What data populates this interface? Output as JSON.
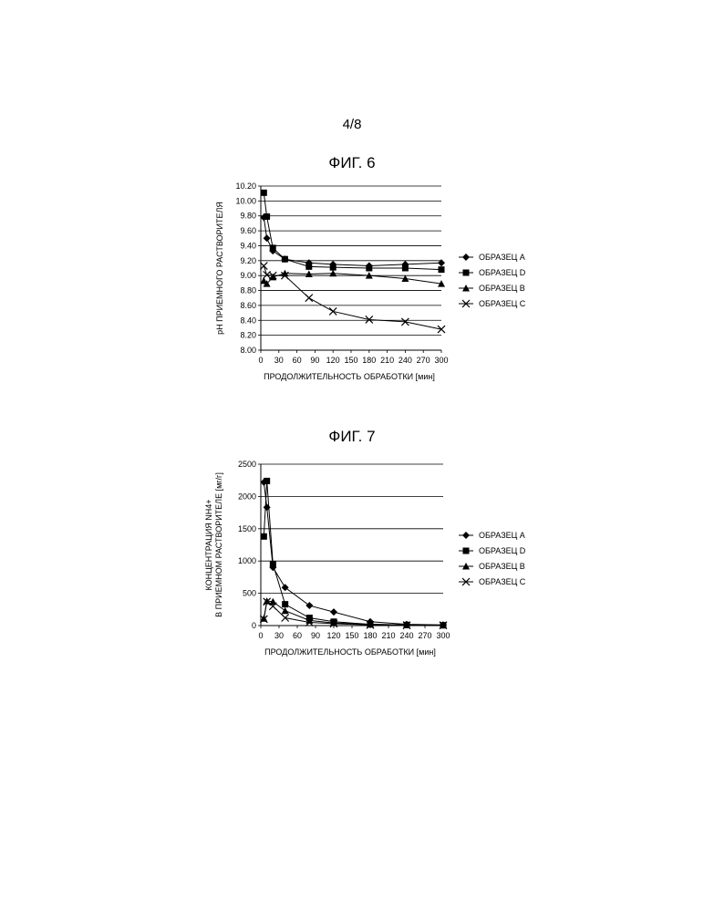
{
  "page_number": "4/8",
  "chart_data": [
    {
      "type": "line",
      "title": "ФИГ. 6",
      "xlabel": "ПРОДОЛЖИТЕЛЬНОСТЬ ОБРАБОТКИ [мин]",
      "ylabel": "pH ПРИЕМНОГО РАСТВОРИТЕЛЯ",
      "ylabel_lines": [
        "pH ПРИЕМНОГО РАСТВОРИТЕЛЯ"
      ],
      "xlim": [
        0,
        300
      ],
      "ylim": [
        8.0,
        10.2
      ],
      "x_ticks": [
        0,
        30,
        60,
        90,
        120,
        150,
        180,
        210,
        240,
        270,
        300
      ],
      "y_ticks": [
        8.0,
        8.2,
        8.4,
        8.6,
        8.8,
        9.0,
        9.2,
        9.4,
        9.6,
        9.8,
        10.0,
        10.2
      ],
      "y_tick_labels": [
        "8.00",
        "8.20",
        "8.40",
        "8.60",
        "8.80",
        "9.00",
        "9.20",
        "9.40",
        "9.60",
        "9.80",
        "10.00",
        "10.20"
      ],
      "grid": "horizontal",
      "legend_position": "right",
      "series": [
        {
          "name": "ОБРАЗЕЦ A",
          "marker": "diamond",
          "x": [
            5,
            10,
            20,
            40,
            80,
            120,
            180,
            240,
            300
          ],
          "y": [
            9.78,
            9.5,
            9.33,
            9.22,
            9.17,
            9.15,
            9.13,
            9.15,
            9.17
          ]
        },
        {
          "name": "ОБРАЗЕЦ D",
          "marker": "square",
          "x": [
            5,
            10,
            20,
            40,
            80,
            120,
            180,
            240,
            300
          ],
          "y": [
            10.11,
            9.79,
            9.37,
            9.22,
            9.12,
            9.11,
            9.1,
            9.1,
            9.08
          ]
        },
        {
          "name": "ОБРАЗЕЦ B",
          "marker": "triangle",
          "x": [
            5,
            10,
            20,
            40,
            80,
            120,
            180,
            240,
            300
          ],
          "y": [
            8.93,
            8.89,
            8.98,
            9.03,
            9.02,
            9.03,
            9.0,
            8.96,
            8.89
          ]
        },
        {
          "name": "ОБРАЗЕЦ C",
          "marker": "x",
          "x": [
            5,
            10,
            20,
            40,
            80,
            120,
            180,
            240,
            300
          ],
          "y": [
            9.13,
            9.01,
            9.0,
            9.0,
            8.7,
            8.52,
            8.41,
            8.38,
            8.28
          ]
        }
      ]
    },
    {
      "type": "line",
      "title": "ФИГ. 7",
      "xlabel": "ПРОДОЛЖИТЕЛЬНОСТЬ ОБРАБОТКИ [мин]",
      "ylabel": "КОНЦЕНТРАЦИЯ NH4+ В ПРИЕМНОМ РАСТВОРИТЕЛЕ [мг/г]",
      "ylabel_lines": [
        "КОНЦЕНТРАЦИЯ NH4+",
        "В ПРИЕМНОМ РАСТВОРИТЕЛЕ [мг/г]"
      ],
      "xlim": [
        0,
        300
      ],
      "ylim": [
        0,
        2500
      ],
      "x_ticks": [
        0,
        30,
        60,
        90,
        120,
        150,
        180,
        210,
        240,
        270,
        300
      ],
      "y_ticks": [
        0,
        500,
        1000,
        1500,
        2000,
        2500
      ],
      "y_tick_labels": [
        "0",
        "500",
        "1000",
        "1500",
        "2000",
        "2500"
      ],
      "grid": "horizontal",
      "legend_position": "right",
      "series": [
        {
          "name": "ОБРАЗЕЦ A",
          "marker": "diamond",
          "x": [
            5,
            10,
            20,
            40,
            80,
            120,
            180,
            240,
            300
          ],
          "y": [
            2220,
            1830,
            900,
            590,
            310,
            210,
            60,
            20,
            10
          ]
        },
        {
          "name": "ОБРАЗЕЦ D",
          "marker": "square",
          "x": [
            5,
            10,
            20,
            40,
            80,
            120,
            180,
            240,
            300
          ],
          "y": [
            1380,
            2240,
            950,
            330,
            120,
            60,
            20,
            10,
            5
          ]
        },
        {
          "name": "ОБРАЗЕЦ B",
          "marker": "triangle",
          "x": [
            5,
            10,
            20,
            40,
            80,
            120,
            180,
            240,
            300
          ],
          "y": [
            110,
            380,
            370,
            230,
            80,
            40,
            20,
            10,
            5
          ]
        },
        {
          "name": "ОБРАЗЕЦ C",
          "marker": "x",
          "x": [
            5,
            10,
            20,
            40,
            80,
            120,
            180,
            240,
            300
          ],
          "y": [
            100,
            370,
            300,
            120,
            50,
            30,
            10,
            5,
            5
          ]
        }
      ]
    }
  ]
}
